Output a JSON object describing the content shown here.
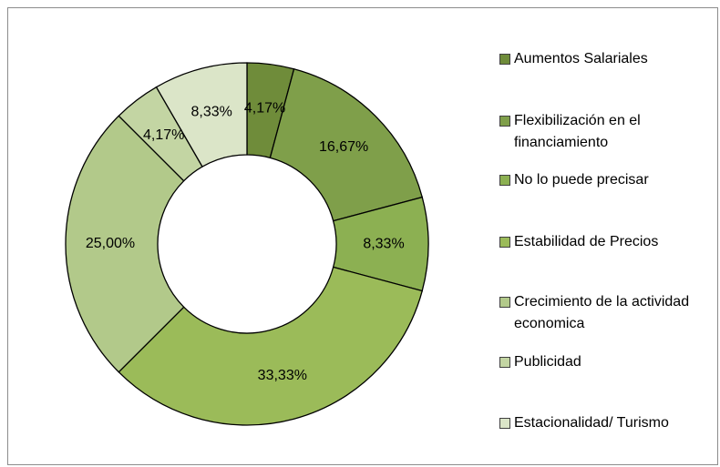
{
  "chart_data": {
    "type": "donut",
    "categories": [
      "Aumentos Salariales",
      "Flexibilización en el financiamiento",
      "No lo puede precisar",
      "Estabilidad de Precios",
      "Crecimiento de la actividad economica",
      "Publicidad",
      "Estacionalidad/ Turismo"
    ],
    "values": [
      4.17,
      16.67,
      8.33,
      33.33,
      25.0,
      4.17,
      8.33
    ],
    "value_labels": [
      "4,17%",
      "16,67%",
      "8,33%",
      "33,33%",
      "25,00%",
      "4,17%",
      "8,33%"
    ],
    "colors": [
      "#6f8c3a",
      "#7f9f4a",
      "#8cb052",
      "#9bbb59",
      "#b2c98a",
      "#c3d5a3",
      "#dbe5c8"
    ],
    "legend": "right"
  }
}
